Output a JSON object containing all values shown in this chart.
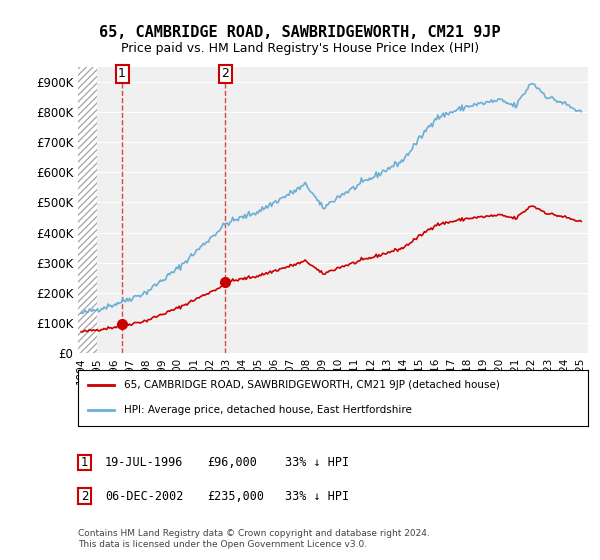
{
  "title": "65, CAMBRIDGE ROAD, SAWBRIDGEWORTH, CM21 9JP",
  "subtitle": "Price paid vs. HM Land Registry's House Price Index (HPI)",
  "xlabel": "",
  "ylabel": "",
  "ylim": [
    0,
    950000
  ],
  "yticks": [
    0,
    100000,
    200000,
    300000,
    400000,
    500000,
    600000,
    700000,
    800000,
    900000
  ],
  "ytick_labels": [
    "£0",
    "£100K",
    "£200K",
    "£300K",
    "£400K",
    "£500K",
    "£600K",
    "£700K",
    "£800K",
    "£900K"
  ],
  "hpi_color": "#6baed6",
  "price_color": "#cc0000",
  "sale1_date": 1996.54,
  "sale1_price": 96000,
  "sale2_date": 2002.92,
  "sale2_price": 235000,
  "legend_label_price": "65, CAMBRIDGE ROAD, SAWBRIDGEWORTH, CM21 9JP (detached house)",
  "legend_label_hpi": "HPI: Average price, detached house, East Hertfordshire",
  "annotation1_label": "1",
  "annotation2_label": "2",
  "table_row1": "1     19-JUL-1996          £96,000          33% ↓ HPI",
  "table_row2": "2     06-DEC-2002          £235,000        33% ↓ HPI",
  "footnote": "Contains HM Land Registry data © Crown copyright and database right 2024.\nThis data is licensed under the Open Government Licence v3.0.",
  "background_color": "#ffffff",
  "plot_bg_color": "#f0f0f0",
  "hatch_color": "#cccccc"
}
